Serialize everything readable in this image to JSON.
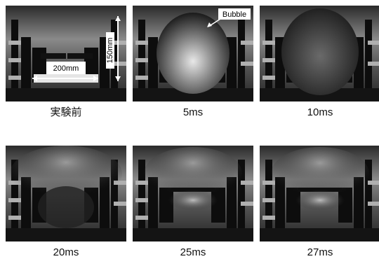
{
  "panels": [
    {
      "caption": "実験前"
    },
    {
      "caption": "5ms"
    },
    {
      "caption": "10ms"
    },
    {
      "caption": "20ms"
    },
    {
      "caption": "25ms"
    },
    {
      "caption": "27ms"
    }
  ],
  "annotations": {
    "width": "200mm",
    "height": "150mm",
    "bubble": "Bubble"
  }
}
